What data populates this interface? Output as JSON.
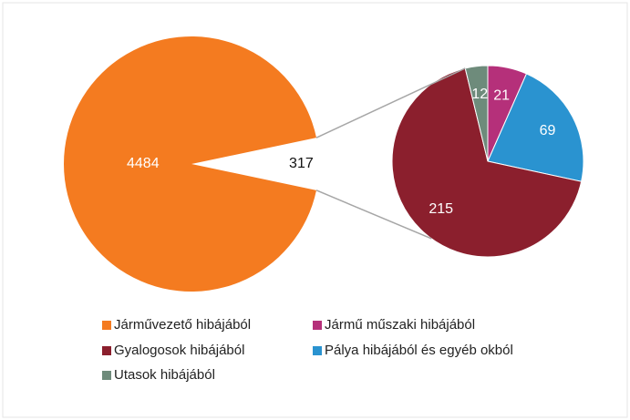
{
  "chart_data": {
    "type": "pie-of-pie",
    "categories": [
      "Járművezető hibájából",
      "Jármű műszaki hibájából",
      "Pálya hibájából és egyéb okból",
      "Gyalogosok hibájából",
      "Utasok hibájából"
    ],
    "values": [
      4484,
      21,
      69,
      215,
      12
    ],
    "colors": [
      "#f47b20",
      "#b5307a",
      "#2a93d0",
      "#8b1f2d",
      "#6e8b7b"
    ],
    "secondary": [
      false,
      true,
      true,
      true,
      true
    ],
    "other_total": 317,
    "legend": "bottom"
  }
}
